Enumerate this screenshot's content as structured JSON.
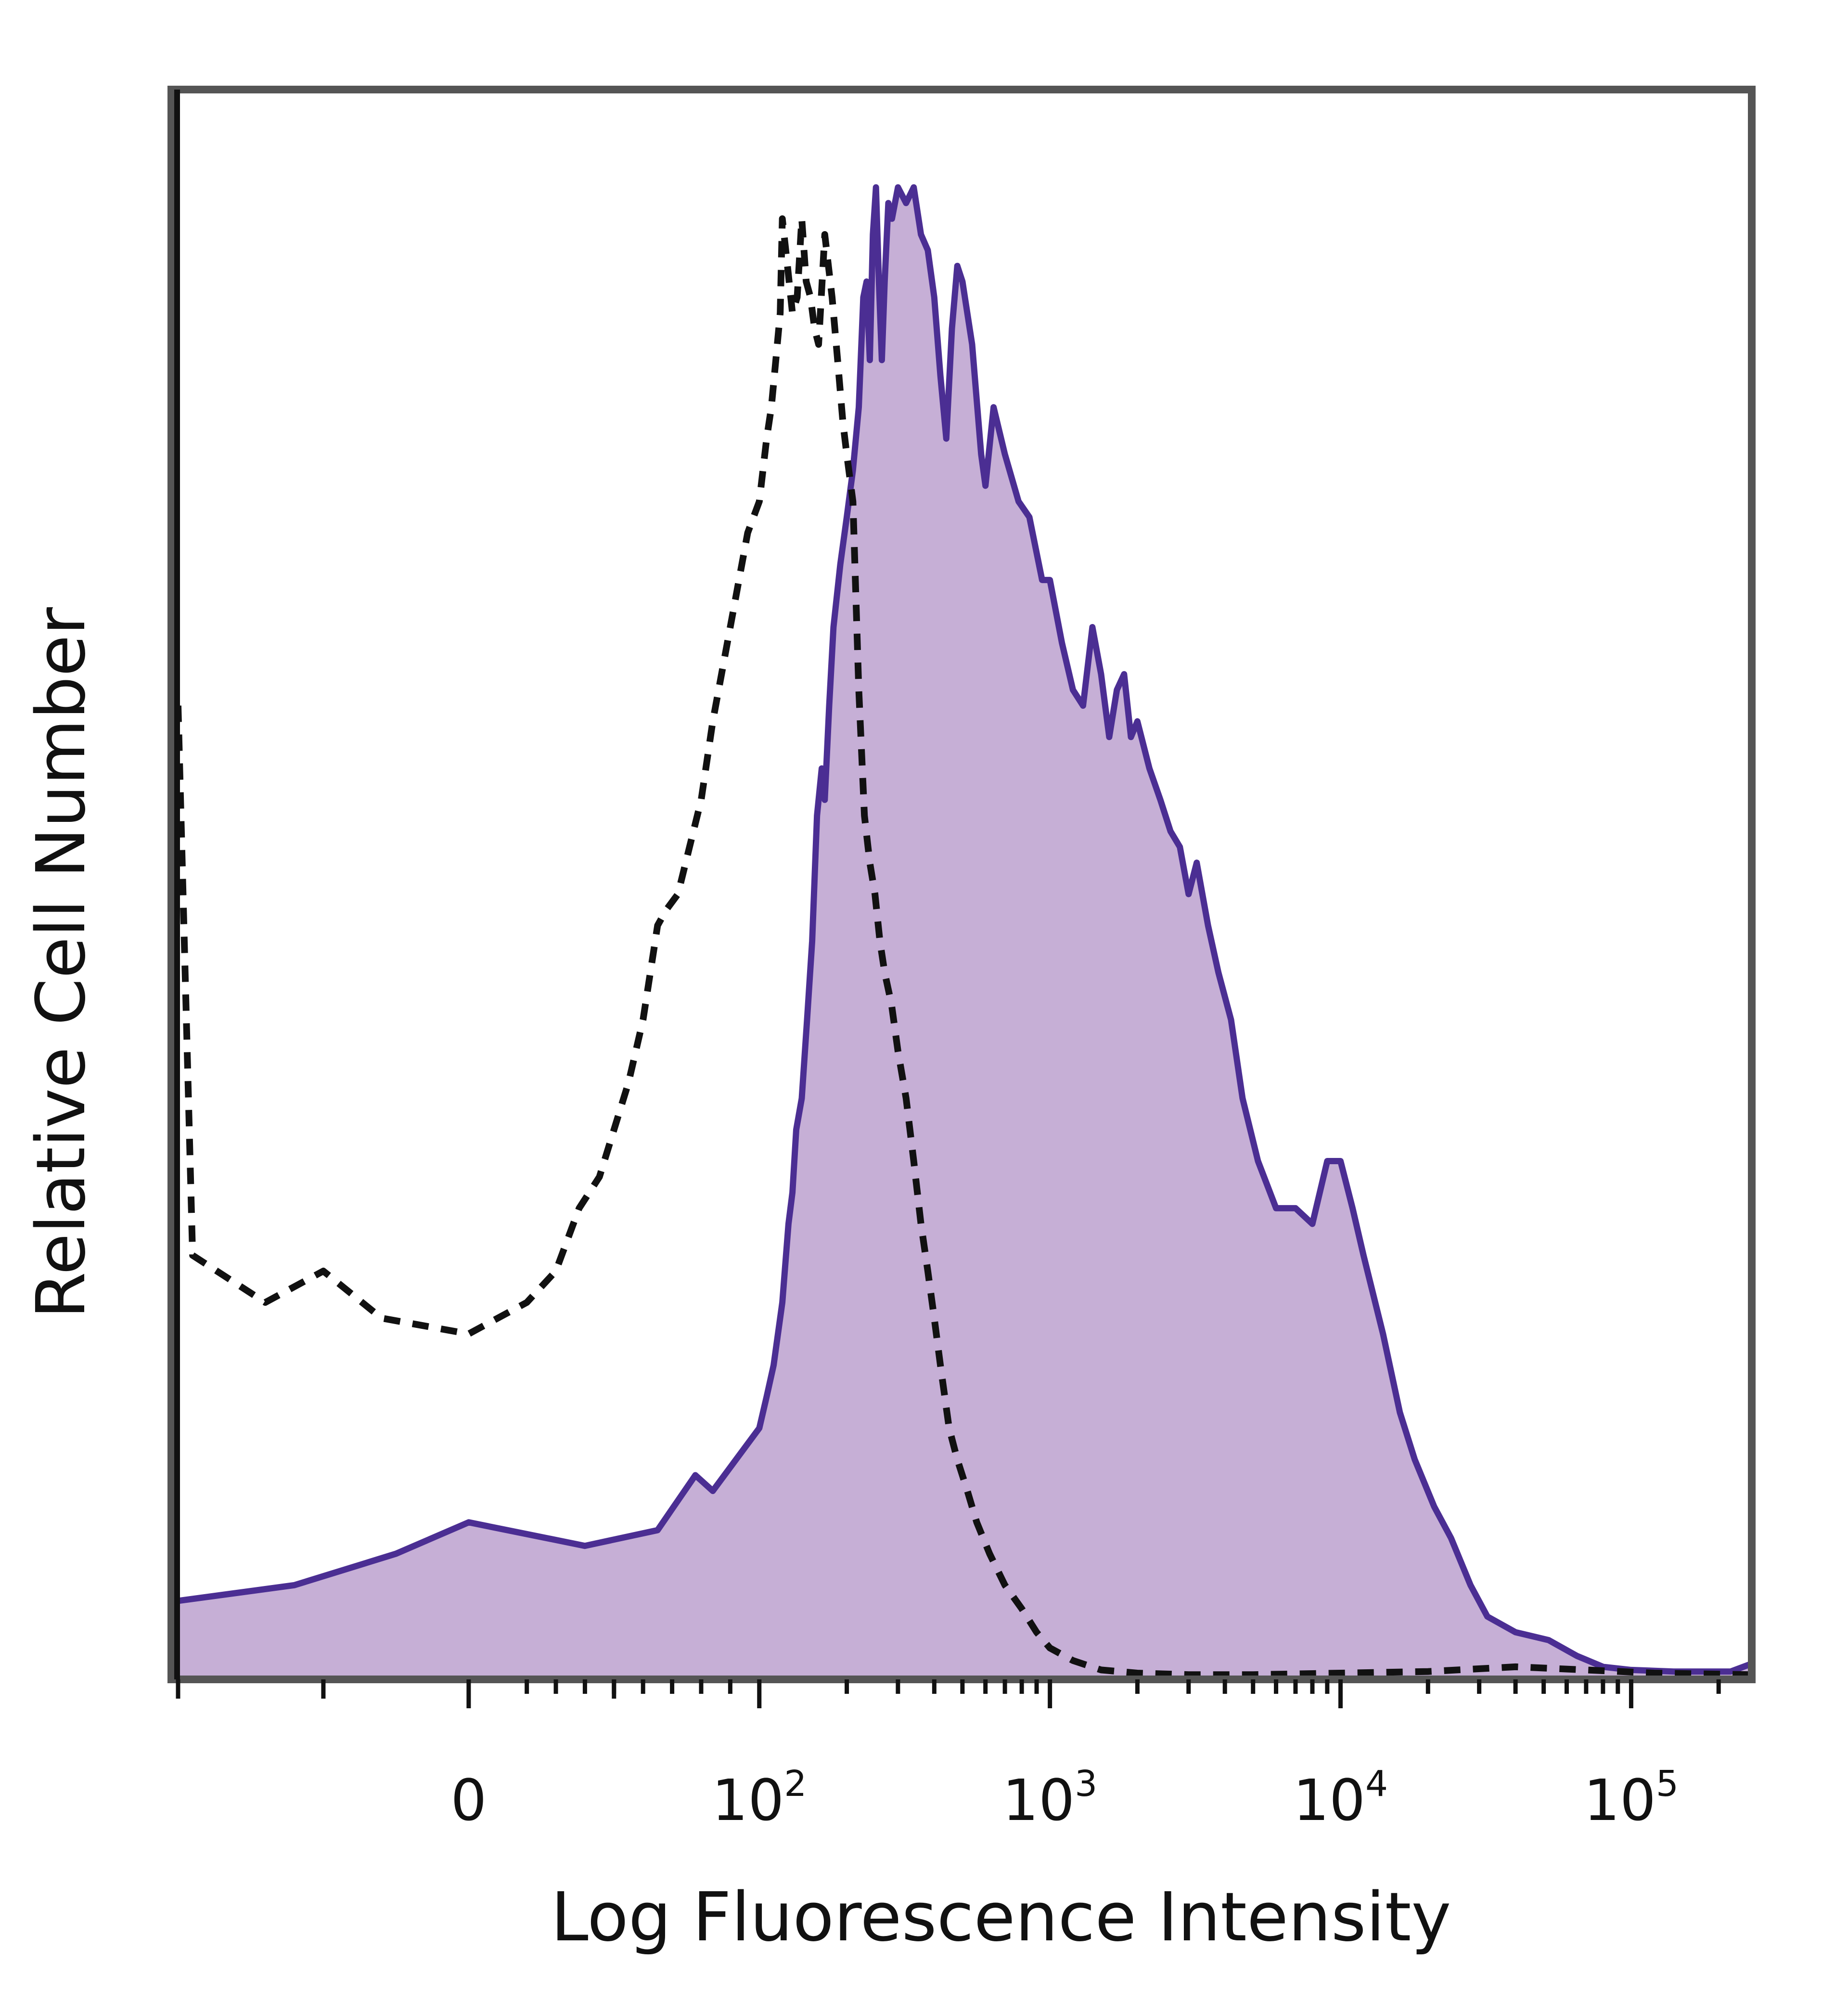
{
  "chart_data": {
    "type": "area",
    "title": "",
    "xlabel": "Log Fluorescence Intensity",
    "ylabel": "Relative Cell Number",
    "x_scale": "biexponential",
    "x_ticks": [
      {
        "value": 0,
        "base": "0",
        "exp": ""
      },
      {
        "value": 100,
        "base": "10",
        "exp": "2"
      },
      {
        "value": 1000,
        "base": "10",
        "exp": "3"
      },
      {
        "value": 10000,
        "base": "10",
        "exp": "4"
      },
      {
        "value": 100000,
        "base": "10",
        "exp": "5"
      }
    ],
    "xlim": [
      -100,
      260000
    ],
    "ylim": [
      0,
      100
    ],
    "grid": false,
    "legend": "none",
    "series": [
      {
        "style": "filled",
        "color": "#4b2e93",
        "fill": "#c6afd6",
        "points": [
          [
            -100,
            5
          ],
          [
            -60,
            6
          ],
          [
            -25,
            8
          ],
          [
            0,
            10
          ],
          [
            40,
            8.5
          ],
          [
            65,
            9.5
          ],
          [
            78,
            13
          ],
          [
            84,
            12
          ],
          [
            92,
            14
          ],
          [
            100,
            16
          ],
          [
            106,
            18
          ],
          [
            112,
            20
          ],
          [
            120,
            24
          ],
          [
            126,
            29
          ],
          [
            130,
            31
          ],
          [
            134,
            35
          ],
          [
            140,
            37
          ],
          [
            146,
            42
          ],
          [
            152,
            47
          ],
          [
            158,
            55
          ],
          [
            164,
            58
          ],
          [
            168,
            56
          ],
          [
            174,
            62
          ],
          [
            180,
            67
          ],
          [
            190,
            71
          ],
          [
            200,
            74
          ],
          [
            210,
            77
          ],
          [
            220,
            81
          ],
          [
            228,
            88
          ],
          [
            234,
            89
          ],
          [
            240,
            84
          ],
          [
            246,
            92
          ],
          [
            252,
            95
          ],
          [
            258,
            89
          ],
          [
            264,
            84
          ],
          [
            270,
            89
          ],
          [
            278,
            94
          ],
          [
            286,
            93
          ],
          [
            300,
            95
          ],
          [
            320,
            94
          ],
          [
            340,
            95
          ],
          [
            360,
            92
          ],
          [
            380,
            91
          ],
          [
            400,
            88
          ],
          [
            420,
            83
          ],
          [
            440,
            79
          ],
          [
            460,
            86
          ],
          [
            480,
            90
          ],
          [
            500,
            89
          ],
          [
            540,
            85
          ],
          [
            580,
            78
          ],
          [
            600,
            76
          ],
          [
            640,
            81
          ],
          [
            700,
            78
          ],
          [
            780,
            75
          ],
          [
            850,
            74
          ],
          [
            940,
            70
          ],
          [
            1000,
            70
          ],
          [
            1100,
            66
          ],
          [
            1200,
            63
          ],
          [
            1300,
            62
          ],
          [
            1400,
            67
          ],
          [
            1500,
            64
          ],
          [
            1600,
            60
          ],
          [
            1700,
            63
          ],
          [
            1800,
            64
          ],
          [
            1900,
            60
          ],
          [
            2000,
            61
          ],
          [
            2200,
            58
          ],
          [
            2400,
            56
          ],
          [
            2600,
            54
          ],
          [
            2800,
            53
          ],
          [
            3000,
            50
          ],
          [
            3200,
            52
          ],
          [
            3500,
            48
          ],
          [
            3800,
            45
          ],
          [
            4200,
            42
          ],
          [
            4600,
            37
          ],
          [
            5200,
            33
          ],
          [
            6000,
            30
          ],
          [
            7000,
            30
          ],
          [
            8000,
            29
          ],
          [
            9000,
            33
          ],
          [
            10000,
            33
          ],
          [
            11000,
            30
          ],
          [
            12000,
            27
          ],
          [
            14000,
            22
          ],
          [
            16000,
            17
          ],
          [
            18000,
            14
          ],
          [
            21000,
            11
          ],
          [
            24000,
            9
          ],
          [
            28000,
            6
          ],
          [
            32000,
            4
          ],
          [
            40000,
            3
          ],
          [
            52000,
            2.5
          ],
          [
            65000,
            1.5
          ],
          [
            80000,
            0.8
          ],
          [
            100000,
            0.6
          ],
          [
            140000,
            0.5
          ],
          [
            180000,
            0.5
          ],
          [
            220000,
            0.5
          ],
          [
            260000,
            1
          ]
        ]
      },
      {
        "style": "dashed",
        "color": "#111111",
        "points": [
          [
            -100,
            62
          ],
          [
            -95,
            27
          ],
          [
            -70,
            24
          ],
          [
            -50,
            26
          ],
          [
            -30,
            23
          ],
          [
            0,
            22
          ],
          [
            20,
            24
          ],
          [
            30,
            26
          ],
          [
            38,
            30
          ],
          [
            45,
            32
          ],
          [
            50,
            35
          ],
          [
            55,
            38
          ],
          [
            60,
            42
          ],
          [
            65,
            48
          ],
          [
            68,
            49
          ],
          [
            72,
            50
          ],
          [
            76,
            53
          ],
          [
            80,
            56
          ],
          [
            84,
            61
          ],
          [
            88,
            65
          ],
          [
            92,
            69
          ],
          [
            96,
            73
          ],
          [
            100,
            75
          ],
          [
            106,
            79
          ],
          [
            110,
            81
          ],
          [
            114,
            84
          ],
          [
            118,
            87
          ],
          [
            120,
            93
          ],
          [
            125,
            90
          ],
          [
            130,
            87
          ],
          [
            135,
            88
          ],
          [
            140,
            93
          ],
          [
            145,
            89
          ],
          [
            150,
            88
          ],
          [
            155,
            86
          ],
          [
            160,
            85
          ],
          [
            168,
            92
          ],
          [
            178,
            88
          ],
          [
            186,
            84
          ],
          [
            194,
            80
          ],
          [
            200,
            78
          ],
          [
            210,
            75
          ],
          [
            220,
            63
          ],
          [
            230,
            55
          ],
          [
            240,
            52
          ],
          [
            250,
            50
          ],
          [
            260,
            47
          ],
          [
            270,
            45
          ],
          [
            285,
            43
          ],
          [
            300,
            40
          ],
          [
            320,
            37
          ],
          [
            340,
            33
          ],
          [
            360,
            29
          ],
          [
            380,
            26
          ],
          [
            400,
            23
          ],
          [
            420,
            20
          ],
          [
            450,
            16
          ],
          [
            480,
            14
          ],
          [
            520,
            12
          ],
          [
            560,
            10
          ],
          [
            620,
            8
          ],
          [
            700,
            6
          ],
          [
            800,
            4.5
          ],
          [
            900,
            3
          ],
          [
            1000,
            2
          ],
          [
            1200,
            1.2
          ],
          [
            1500,
            0.6
          ],
          [
            2000,
            0.4
          ],
          [
            3000,
            0.3
          ],
          [
            5000,
            0.3
          ],
          [
            10000,
            0.4
          ],
          [
            20000,
            0.5
          ],
          [
            40000,
            0.8
          ],
          [
            70000,
            0.6
          ],
          [
            120000,
            0.4
          ],
          [
            260000,
            0.3
          ]
        ]
      }
    ]
  }
}
